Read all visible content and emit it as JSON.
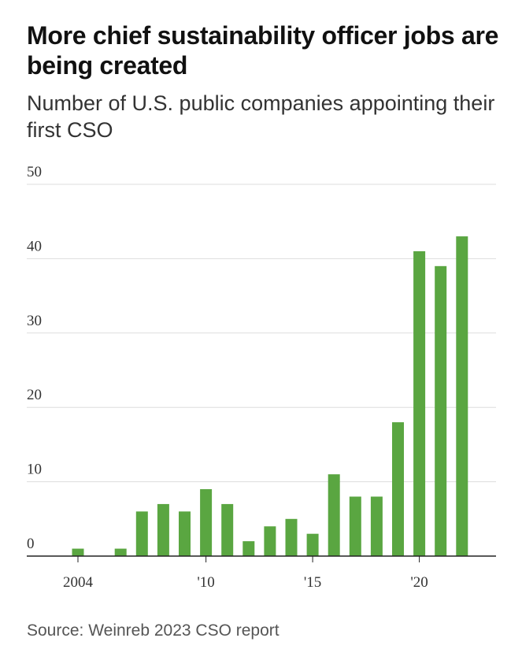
{
  "chart_data": {
    "type": "bar",
    "title": "More chief sustainability officer jobs are being created",
    "subtitle": "Number of U.S. public companies appointing their first CSO",
    "source": "Source: Weinreb 2023 CSO report",
    "xlabel": "",
    "ylabel": "",
    "categories": [
      "2004",
      "2005",
      "2006",
      "2007",
      "2008",
      "2009",
      "2010",
      "2011",
      "2012",
      "2013",
      "2014",
      "2015",
      "2016",
      "2017",
      "2018",
      "2019",
      "2020",
      "2021",
      "2022"
    ],
    "values": [
      1,
      0,
      1,
      6,
      7,
      6,
      9,
      7,
      2,
      4,
      5,
      3,
      11,
      8,
      8,
      18,
      41,
      39,
      43
    ],
    "ylim": [
      0,
      50
    ],
    "yticks": [
      0,
      10,
      20,
      30,
      40,
      50
    ],
    "xtick_labels": [
      {
        "category": "2004",
        "label": "2004"
      },
      {
        "category": "2010",
        "label": "'10"
      },
      {
        "category": "2015",
        "label": "'15"
      },
      {
        "category": "2020",
        "label": "'20"
      }
    ],
    "colors": {
      "bar": "#5aa641",
      "grid": "#dddddd",
      "axis": "#222222"
    },
    "grid": true
  }
}
